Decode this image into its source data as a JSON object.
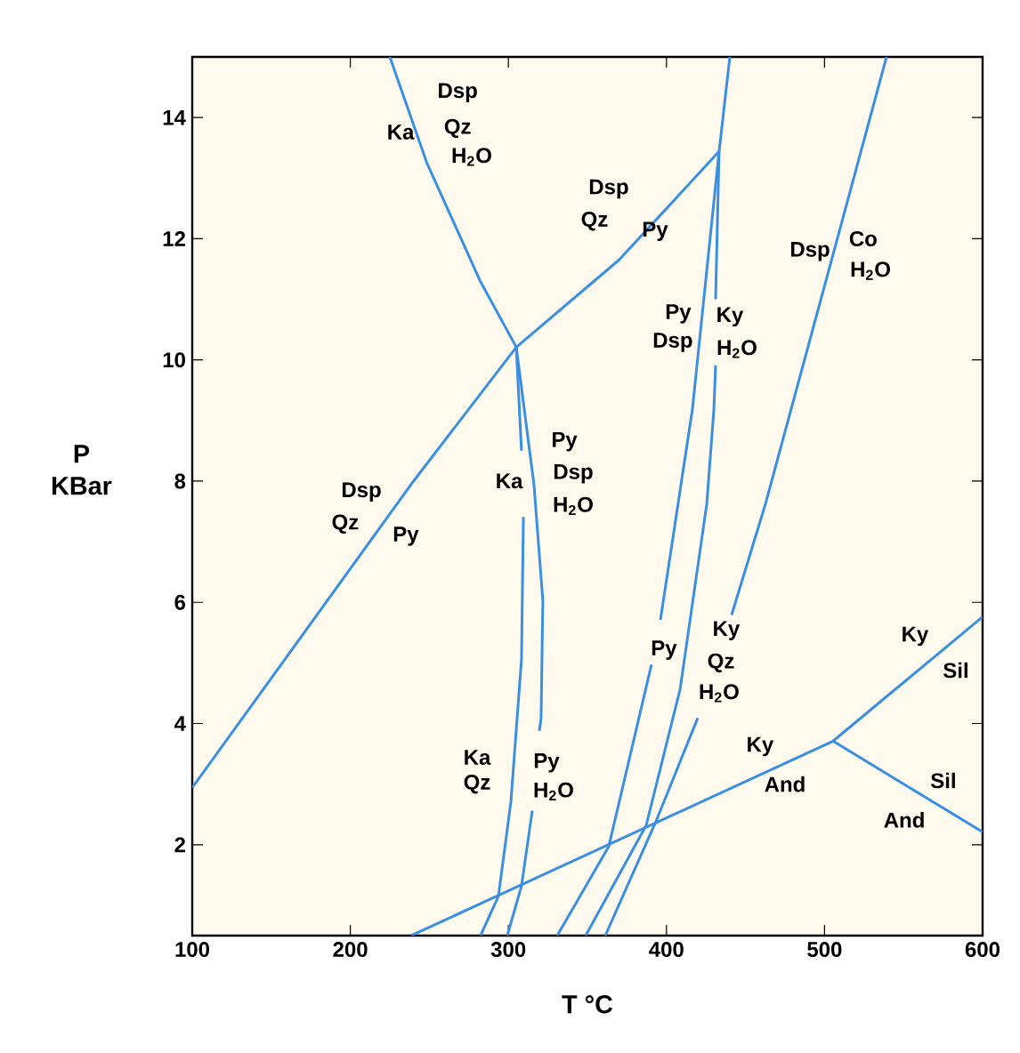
{
  "chart_data": {
    "type": "line",
    "xlabel": "T °C",
    "ylabel": "P KBar",
    "xlim": [
      100,
      600
    ],
    "ylim": [
      0.5,
      15
    ],
    "xticks": [
      100,
      200,
      300,
      400,
      500,
      600
    ],
    "yticks": [
      2,
      4,
      6,
      8,
      10,
      12,
      14
    ],
    "series": [
      {
        "color": "#3a8fe3",
        "x": [
          100,
          240,
          305,
          370,
          433.3
        ],
        "values": [
          2.94,
          8.0,
          10.21,
          11.65,
          13.44
        ]
      },
      {
        "color": "#3a8fe3",
        "x": [
          225,
          248.6,
          282.4,
          305,
          308.3,
          null,
          309.5,
          308.3,
          301.6,
          293.7,
          282.4
        ],
        "values": [
          15,
          13.24,
          11.29,
          10.21,
          8.5,
          null,
          7.41,
          5.06,
          2.71,
          1.15,
          0.5
        ]
      },
      {
        "color": "#3a8fe3",
        "x": [
          305,
          316.2,
          321.8,
          320.7,
          319.6,
          null,
          315.1,
          308.3,
          299.3
        ],
        "values": [
          10.21,
          7.94,
          6.03,
          4.09,
          3.88,
          null,
          2.56,
          1.32,
          0.5
        ]
      },
      {
        "color": "#3a8fe3",
        "x": [
          238.5,
          505.4,
          600
        ],
        "values": [
          0.5,
          3.71,
          5.76
        ]
      },
      {
        "color": "#3a8fe3",
        "x": [
          505.4,
          600
        ],
        "values": [
          3.71,
          2.21
        ]
      },
      {
        "color": "#3a8fe3",
        "x": [
          440.1,
          433.3,
          416.4,
          396.2,
          null,
          390.5,
          363.5,
          330.9
        ],
        "values": [
          15,
          13.44,
          9.18,
          5.71,
          null,
          4.97,
          1.97,
          0.5
        ]
      },
      {
        "color": "#3a8fe3",
        "x": [
          433.3,
          431.1,
          null,
          431.1,
          430,
          425.5,
          408.6,
          387.2,
          348.9
        ],
        "values": [
          13.44,
          11.0,
          null,
          9.91,
          9.18,
          7.62,
          4.56,
          2.32,
          0.5
        ]
      },
      {
        "color": "#3a8fe3",
        "x": [
          539.2,
          505.4,
          462.6,
          441.2,
          null,
          419.8,
          392.8,
          361.3
        ],
        "values": [
          15,
          11.74,
          7.62,
          5.79,
          null,
          4.09,
          2.35,
          0.5
        ]
      }
    ],
    "annotations": [
      "Dsp",
      "Qz",
      "H$_{2}$O",
      "Ka",
      "Dsp",
      "Qz",
      "Py",
      "Dsp",
      "Co",
      "H$_{2}$O",
      "Py",
      "Dsp",
      "Ky",
      "H$_{2}$O",
      "Py",
      "Dsp",
      "H$_{2}$O",
      "Ka",
      "Dsp",
      "Qz",
      "Py",
      "Py",
      "Ky",
      "Qz",
      "H$_{2}$O",
      "Ky",
      "Sil",
      "Ka",
      "Qz",
      "Py",
      "H$_{2}$O",
      "Ky",
      "And",
      "Sil",
      "And"
    ]
  }
}
